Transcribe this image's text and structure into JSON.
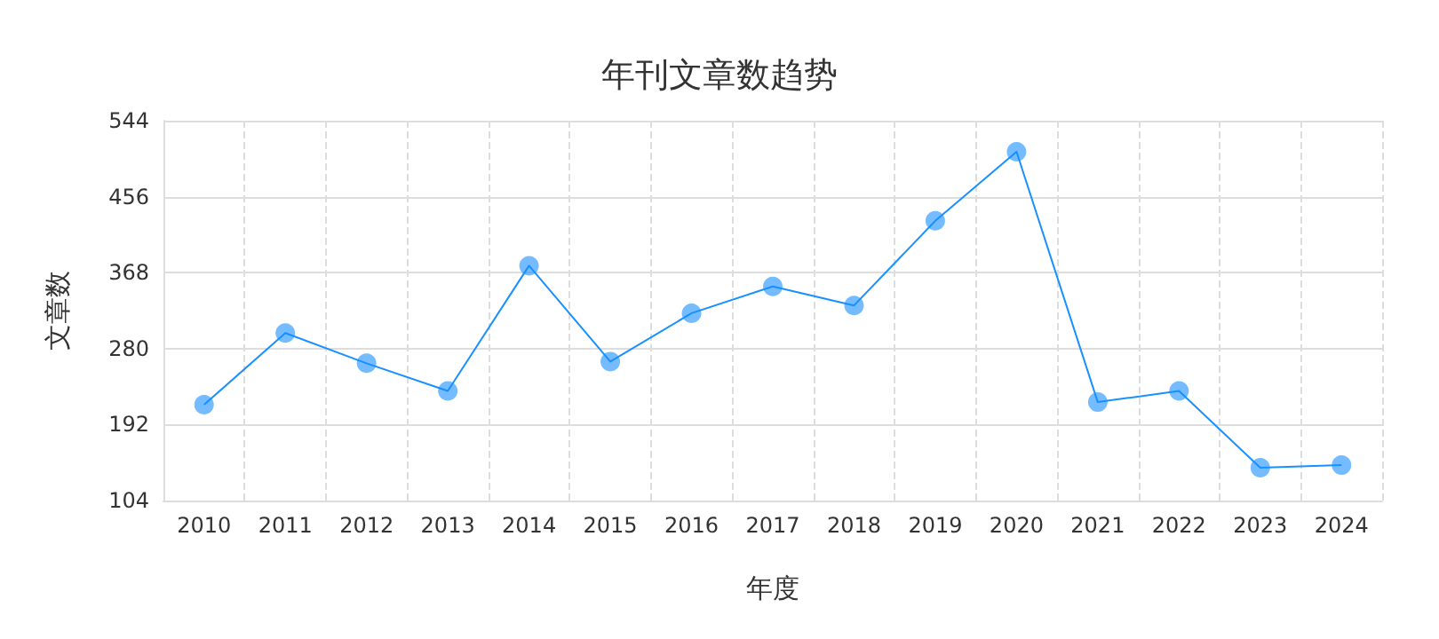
{
  "chart_data": {
    "type": "line",
    "title": "年刊文章数趋势",
    "xlabel": "年度",
    "ylabel": "文章数",
    "categories": [
      "2010",
      "2011",
      "2012",
      "2013",
      "2014",
      "2015",
      "2016",
      "2017",
      "2018",
      "2019",
      "2020",
      "2021",
      "2022",
      "2023",
      "2024"
    ],
    "series": [
      {
        "color": "#1890ff",
        "values": [
          215,
          298,
          263,
          231,
          376,
          265,
          321,
          352,
          330,
          428,
          508,
          218,
          231,
          142,
          145
        ]
      }
    ],
    "ylim": [
      104,
      544
    ],
    "yticks": [
      104,
      192,
      280,
      368,
      456,
      544
    ],
    "grid": true,
    "marker": "circle",
    "line_style": "solid"
  }
}
